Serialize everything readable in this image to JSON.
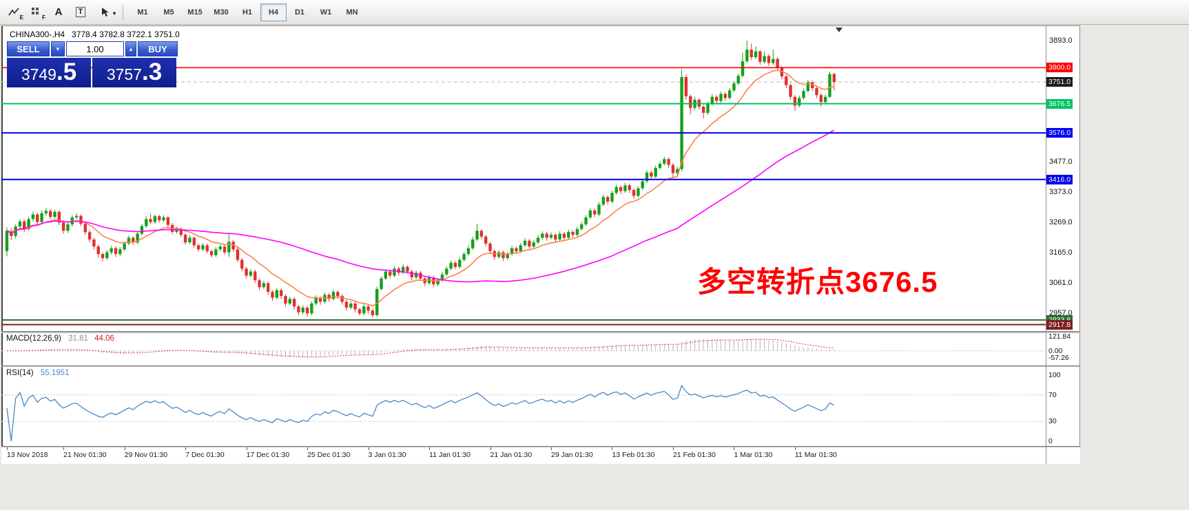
{
  "toolbar": {
    "tools": [
      {
        "glyph": "E",
        "name": "expert-chart-tool"
      },
      {
        "glyph": "F",
        "name": "indicator-grid-tool"
      },
      {
        "glyph": "A",
        "name": "font-tool"
      },
      {
        "glyph": "T",
        "name": "text-label-tool"
      },
      {
        "glyph": "▾",
        "name": "cursor-tool"
      }
    ],
    "timeframes": [
      {
        "label": "M1",
        "active": false
      },
      {
        "label": "M5",
        "active": false
      },
      {
        "label": "M15",
        "active": false
      },
      {
        "label": "M30",
        "active": false
      },
      {
        "label": "H1",
        "active": false
      },
      {
        "label": "H4",
        "active": true
      },
      {
        "label": "D1",
        "active": false
      },
      {
        "label": "W1",
        "active": false
      },
      {
        "label": "MN",
        "active": false
      }
    ]
  },
  "chart_header": {
    "symbol": "CHINA300-,H4",
    "ohlc": "3778.4 3782.8 3722.1 3751.0"
  },
  "trade_panel": {
    "sell_label": "SELL",
    "buy_label": "BUY",
    "volume": "1.00",
    "down_glyph": "▼",
    "up_glyph": "▲",
    "sell_price_main": "3749",
    "sell_price_frac": ".5",
    "buy_price_main": "3757",
    "buy_price_frac": ".3"
  },
  "annotation": {
    "text": "多空转折点3676.5",
    "color": "#ff0000"
  },
  "price_scale": {
    "plain_labels": [
      3893.0,
      3477.0,
      3373.0,
      3269.0,
      3165.0,
      3061.0,
      2957.0
    ],
    "tags": [
      {
        "text": "3800.0",
        "price": 3800.0,
        "bg": "#ff0000"
      },
      {
        "text": "3751.0",
        "price": 3751.0,
        "bg": "#1c1c1c"
      },
      {
        "text": "3676.5",
        "price": 3676.5,
        "bg": "#00c261"
      },
      {
        "text": "3576.0",
        "price": 3576.0,
        "bg": "#0000ee"
      },
      {
        "text": "3416.0",
        "price": 3416.0,
        "bg": "#0000ee"
      },
      {
        "text": "2933.8",
        "price": 2933.8,
        "bg": "#2d6b2d"
      },
      {
        "text": "2917.8",
        "price": 2917.8,
        "bg": "#7a2020"
      }
    ]
  },
  "hlines": [
    {
      "price": 3800.0,
      "color": "#ff0000",
      "width": 1.6
    },
    {
      "price": 3676.5,
      "color": "#00c261",
      "width": 2
    },
    {
      "price": 3576.0,
      "color": "#0000ee",
      "width": 2
    },
    {
      "price": 3416.0,
      "color": "#0000ee",
      "width": 2
    },
    {
      "price": 2933.8,
      "color": "#2d6b2d",
      "width": 2
    },
    {
      "price": 2917.8,
      "color": "#7a2020",
      "width": 2
    }
  ],
  "macd_panel": {
    "label": "MACD(12,26,9)",
    "value_main": "31.81",
    "value_signal": "44.06",
    "scale": [
      121.84,
      0,
      -57.26
    ]
  },
  "rsi_panel": {
    "label": "RSI(14)",
    "value": "55.1951",
    "scale": [
      100,
      70,
      30,
      0
    ],
    "levels": [
      70,
      30
    ]
  },
  "time_axis": [
    {
      "text": "13 Nov 2018",
      "i": 0
    },
    {
      "text": "21 Nov 01:30",
      "i": 13
    },
    {
      "text": "29 Nov 01:30",
      "i": 27
    },
    {
      "text": "7 Dec 01:30",
      "i": 41
    },
    {
      "text": "17 Dec 01:30",
      "i": 55
    },
    {
      "text": "25 Dec 01:30",
      "i": 69
    },
    {
      "text": "3 Jan 01:30",
      "i": 83
    },
    {
      "text": "11 Jan 01:30",
      "i": 97
    },
    {
      "text": "21 Jan 01:30",
      "i": 111
    },
    {
      "text": "29 Jan 01:30",
      "i": 125
    },
    {
      "text": "13 Feb 01:30",
      "i": 139
    },
    {
      "text": "21 Feb 01:30",
      "i": 153
    },
    {
      "text": "1 Mar 01:30",
      "i": 167
    },
    {
      "text": "11 Mar 01:30",
      "i": 181
    }
  ],
  "chart_data": {
    "type": "candlestick",
    "symbol": "CHINA300-",
    "timeframe": "H4",
    "current_ohlc": {
      "open": 3778.4,
      "high": 3782.8,
      "low": 3722.1,
      "close": 3751.0
    },
    "y_axis": {
      "visible_min": 2896,
      "visible_max": 3943,
      "tick_step": 104
    },
    "colors": {
      "up": "#16a01a",
      "down": "#e03030",
      "ma_fast": "#ff7f50",
      "ma_slow": "#ff00ff",
      "rsi": "#4a86c8",
      "macd_hist": "#b4b4b4",
      "macd_signal": "#e03030"
    },
    "overlays": [
      {
        "name": "MA fast",
        "type": "EMA",
        "period": 13
      },
      {
        "name": "MA slow",
        "type": "SMA",
        "period": 62
      }
    ],
    "indicators": [
      {
        "name": "MACD",
        "params": [
          12,
          26,
          9
        ],
        "last_values": [
          31.81,
          44.06
        ],
        "range": [
          -57.26,
          121.84
        ]
      },
      {
        "name": "RSI",
        "params": [
          14
        ],
        "last_values": [
          55.1951
        ],
        "range": [
          0,
          100
        ]
      }
    ],
    "candles": [
      [
        3170,
        3252,
        3152,
        3240
      ],
      [
        3240,
        3248,
        3208,
        3222
      ],
      [
        3222,
        3262,
        3214,
        3255
      ],
      [
        3255,
        3280,
        3246,
        3272
      ],
      [
        3272,
        3278,
        3236,
        3246
      ],
      [
        3246,
        3288,
        3240,
        3280
      ],
      [
        3280,
        3306,
        3272,
        3296
      ],
      [
        3296,
        3302,
        3260,
        3270
      ],
      [
        3270,
        3310,
        3262,
        3300
      ],
      [
        3300,
        3318,
        3292,
        3308
      ],
      [
        3308,
        3315,
        3280,
        3288
      ],
      [
        3288,
        3312,
        3282,
        3305
      ],
      [
        3305,
        3310,
        3260,
        3268
      ],
      [
        3268,
        3276,
        3230,
        3240
      ],
      [
        3240,
        3270,
        3232,
        3262
      ],
      [
        3262,
        3294,
        3254,
        3286
      ],
      [
        3286,
        3300,
        3278,
        3291
      ],
      [
        3291,
        3296,
        3256,
        3264
      ],
      [
        3264,
        3270,
        3226,
        3235
      ],
      [
        3235,
        3242,
        3200,
        3210
      ],
      [
        3210,
        3216,
        3176,
        3186
      ],
      [
        3186,
        3192,
        3148,
        3160
      ],
      [
        3160,
        3166,
        3135,
        3146
      ],
      [
        3146,
        3174,
        3140,
        3166
      ],
      [
        3166,
        3188,
        3158,
        3180
      ],
      [
        3180,
        3186,
        3150,
        3160
      ],
      [
        3160,
        3184,
        3152,
        3176
      ],
      [
        3176,
        3204,
        3170,
        3196
      ],
      [
        3196,
        3224,
        3190,
        3216
      ],
      [
        3216,
        3222,
        3192,
        3200
      ],
      [
        3200,
        3238,
        3194,
        3230
      ],
      [
        3230,
        3264,
        3224,
        3256
      ],
      [
        3256,
        3290,
        3250,
        3280
      ],
      [
        3280,
        3298,
        3262,
        3270
      ],
      [
        3270,
        3296,
        3264,
        3290
      ],
      [
        3290,
        3295,
        3268,
        3276
      ],
      [
        3276,
        3294,
        3270,
        3286
      ],
      [
        3286,
        3290,
        3252,
        3260
      ],
      [
        3260,
        3266,
        3228,
        3236
      ],
      [
        3236,
        3254,
        3230,
        3246
      ],
      [
        3246,
        3252,
        3218,
        3226
      ],
      [
        3226,
        3232,
        3192,
        3200
      ],
      [
        3200,
        3224,
        3194,
        3216
      ],
      [
        3216,
        3220,
        3182,
        3190
      ],
      [
        3190,
        3196,
        3168,
        3176
      ],
      [
        3176,
        3198,
        3170,
        3190
      ],
      [
        3190,
        3196,
        3162,
        3170
      ],
      [
        3170,
        3176,
        3148,
        3156
      ],
      [
        3156,
        3184,
        3150,
        3176
      ],
      [
        3176,
        3194,
        3170,
        3186
      ],
      [
        3186,
        3192,
        3158,
        3166
      ],
      [
        3166,
        3230,
        3150,
        3202
      ],
      [
        3202,
        3208,
        3168,
        3176
      ],
      [
        3176,
        3182,
        3132,
        3140
      ],
      [
        3140,
        3146,
        3100,
        3110
      ],
      [
        3110,
        3116,
        3076,
        3086
      ],
      [
        3086,
        3108,
        3080,
        3100
      ],
      [
        3100,
        3106,
        3060,
        3070
      ],
      [
        3070,
        3076,
        3036,
        3046
      ],
      [
        3046,
        3068,
        3040,
        3060
      ],
      [
        3060,
        3066,
        3020,
        3030
      ],
      [
        3030,
        3036,
        3000,
        3010
      ],
      [
        3010,
        3044,
        3004,
        3036
      ],
      [
        3036,
        3042,
        3006,
        3016
      ],
      [
        3016,
        3022,
        2980,
        2990
      ],
      [
        2990,
        3014,
        2984,
        3006
      ],
      [
        3006,
        3012,
        2970,
        2980
      ],
      [
        2980,
        2986,
        2950,
        2960
      ],
      [
        2960,
        2984,
        2954,
        2976
      ],
      [
        2976,
        2982,
        2945,
        2956
      ],
      [
        2956,
        2998,
        2950,
        2990
      ],
      [
        2990,
        3018,
        2984,
        3010
      ],
      [
        3010,
        3016,
        2986,
        2996
      ],
      [
        2996,
        3028,
        2990,
        3020
      ],
      [
        3020,
        3026,
        2996,
        3006
      ],
      [
        3006,
        3038,
        3000,
        3030
      ],
      [
        3030,
        3036,
        3006,
        3016
      ],
      [
        3016,
        3022,
        2986,
        2996
      ],
      [
        2996,
        3002,
        2966,
        2976
      ],
      [
        2976,
        2998,
        2970,
        2990
      ],
      [
        2990,
        2996,
        2960,
        2970
      ],
      [
        2970,
        2976,
        2948,
        2956
      ],
      [
        2956,
        2988,
        2950,
        2980
      ],
      [
        2980,
        2986,
        2956,
        2966
      ],
      [
        2966,
        2972,
        2943,
        2950
      ],
      [
        2950,
        3048,
        2945,
        3040
      ],
      [
        3040,
        3084,
        3034,
        3076
      ],
      [
        3076,
        3108,
        3070,
        3100
      ],
      [
        3100,
        3106,
        3076,
        3086
      ],
      [
        3086,
        3118,
        3080,
        3110
      ],
      [
        3110,
        3116,
        3086,
        3096
      ],
      [
        3096,
        3124,
        3090,
        3116
      ],
      [
        3116,
        3122,
        3092,
        3100
      ],
      [
        3100,
        3106,
        3070,
        3080
      ],
      [
        3080,
        3104,
        3074,
        3096
      ],
      [
        3096,
        3102,
        3068,
        3076
      ],
      [
        3076,
        3082,
        3050,
        3060
      ],
      [
        3060,
        3088,
        3054,
        3080
      ],
      [
        3080,
        3086,
        3046,
        3056
      ],
      [
        3056,
        3078,
        3050,
        3070
      ],
      [
        3070,
        3098,
        3064,
        3090
      ],
      [
        3090,
        3118,
        3084,
        3110
      ],
      [
        3110,
        3138,
        3104,
        3130
      ],
      [
        3130,
        3136,
        3108,
        3116
      ],
      [
        3116,
        3148,
        3110,
        3140
      ],
      [
        3140,
        3168,
        3134,
        3160
      ],
      [
        3160,
        3190,
        3154,
        3180
      ],
      [
        3180,
        3220,
        3174,
        3210
      ],
      [
        3210,
        3264,
        3204,
        3240
      ],
      [
        3240,
        3246,
        3210,
        3220
      ],
      [
        3220,
        3226,
        3186,
        3196
      ],
      [
        3196,
        3202,
        3160,
        3170
      ],
      [
        3170,
        3176,
        3140,
        3150
      ],
      [
        3150,
        3174,
        3144,
        3166
      ],
      [
        3166,
        3172,
        3136,
        3146
      ],
      [
        3146,
        3168,
        3140,
        3160
      ],
      [
        3160,
        3188,
        3154,
        3180
      ],
      [
        3180,
        3186,
        3160,
        3170
      ],
      [
        3170,
        3198,
        3164,
        3190
      ],
      [
        3190,
        3214,
        3184,
        3206
      ],
      [
        3206,
        3212,
        3178,
        3186
      ],
      [
        3186,
        3208,
        3180,
        3200
      ],
      [
        3200,
        3224,
        3194,
        3216
      ],
      [
        3216,
        3238,
        3210,
        3230
      ],
      [
        3230,
        3236,
        3206,
        3216
      ],
      [
        3216,
        3234,
        3210,
        3226
      ],
      [
        3226,
        3232,
        3200,
        3210
      ],
      [
        3210,
        3238,
        3204,
        3230
      ],
      [
        3230,
        3236,
        3206,
        3216
      ],
      [
        3216,
        3244,
        3210,
        3236
      ],
      [
        3236,
        3242,
        3216,
        3226
      ],
      [
        3226,
        3254,
        3220,
        3246
      ],
      [
        3246,
        3270,
        3240,
        3262
      ],
      [
        3262,
        3294,
        3256,
        3286
      ],
      [
        3286,
        3318,
        3280,
        3310
      ],
      [
        3310,
        3316,
        3286,
        3296
      ],
      [
        3296,
        3338,
        3290,
        3330
      ],
      [
        3330,
        3364,
        3324,
        3356
      ],
      [
        3356,
        3362,
        3330,
        3340
      ],
      [
        3340,
        3378,
        3334,
        3370
      ],
      [
        3370,
        3398,
        3364,
        3390
      ],
      [
        3390,
        3396,
        3366,
        3376
      ],
      [
        3376,
        3404,
        3370,
        3396
      ],
      [
        3396,
        3402,
        3370,
        3380
      ],
      [
        3380,
        3386,
        3350,
        3360
      ],
      [
        3360,
        3394,
        3354,
        3386
      ],
      [
        3386,
        3418,
        3380,
        3410
      ],
      [
        3410,
        3448,
        3404,
        3440
      ],
      [
        3440,
        3446,
        3416,
        3426
      ],
      [
        3426,
        3464,
        3420,
        3456
      ],
      [
        3456,
        3478,
        3450,
        3470
      ],
      [
        3470,
        3494,
        3464,
        3486
      ],
      [
        3486,
        3492,
        3456,
        3466
      ],
      [
        3466,
        3472,
        3420,
        3438
      ],
      [
        3438,
        3460,
        3428,
        3452
      ],
      [
        3452,
        3795,
        3444,
        3768
      ],
      [
        3768,
        3776,
        3690,
        3702
      ],
      [
        3702,
        3708,
        3640,
        3662
      ],
      [
        3662,
        3700,
        3654,
        3690
      ],
      [
        3690,
        3696,
        3656,
        3666
      ],
      [
        3666,
        3672,
        3626,
        3645
      ],
      [
        3645,
        3684,
        3638,
        3676
      ],
      [
        3676,
        3710,
        3670,
        3700
      ],
      [
        3700,
        3706,
        3676,
        3686
      ],
      [
        3686,
        3718,
        3680,
        3710
      ],
      [
        3710,
        3716,
        3686,
        3696
      ],
      [
        3696,
        3730,
        3690,
        3722
      ],
      [
        3722,
        3754,
        3716,
        3746
      ],
      [
        3746,
        3780,
        3740,
        3772
      ],
      [
        3772,
        3852,
        3766,
        3822
      ],
      [
        3822,
        3893,
        3816,
        3862
      ],
      [
        3862,
        3882,
        3826,
        3836
      ],
      [
        3836,
        3874,
        3830,
        3856
      ],
      [
        3856,
        3860,
        3810,
        3820
      ],
      [
        3820,
        3856,
        3814,
        3840
      ],
      [
        3840,
        3846,
        3806,
        3816
      ],
      [
        3816,
        3862,
        3810,
        3830
      ],
      [
        3830,
        3836,
        3790,
        3800
      ],
      [
        3800,
        3806,
        3760,
        3770
      ],
      [
        3770,
        3776,
        3730,
        3740
      ],
      [
        3740,
        3746,
        3690,
        3700
      ],
      [
        3700,
        3706,
        3652,
        3670
      ],
      [
        3670,
        3704,
        3664,
        3696
      ],
      [
        3696,
        3728,
        3690,
        3720
      ],
      [
        3720,
        3758,
        3714,
        3750
      ],
      [
        3750,
        3756,
        3720,
        3730
      ],
      [
        3730,
        3736,
        3696,
        3706
      ],
      [
        3706,
        3712,
        3666,
        3682
      ],
      [
        3682,
        3708,
        3676,
        3700
      ],
      [
        3700,
        3786,
        3696,
        3778
      ],
      [
        3778.4,
        3782.8,
        3722.1,
        3751.0
      ]
    ]
  }
}
